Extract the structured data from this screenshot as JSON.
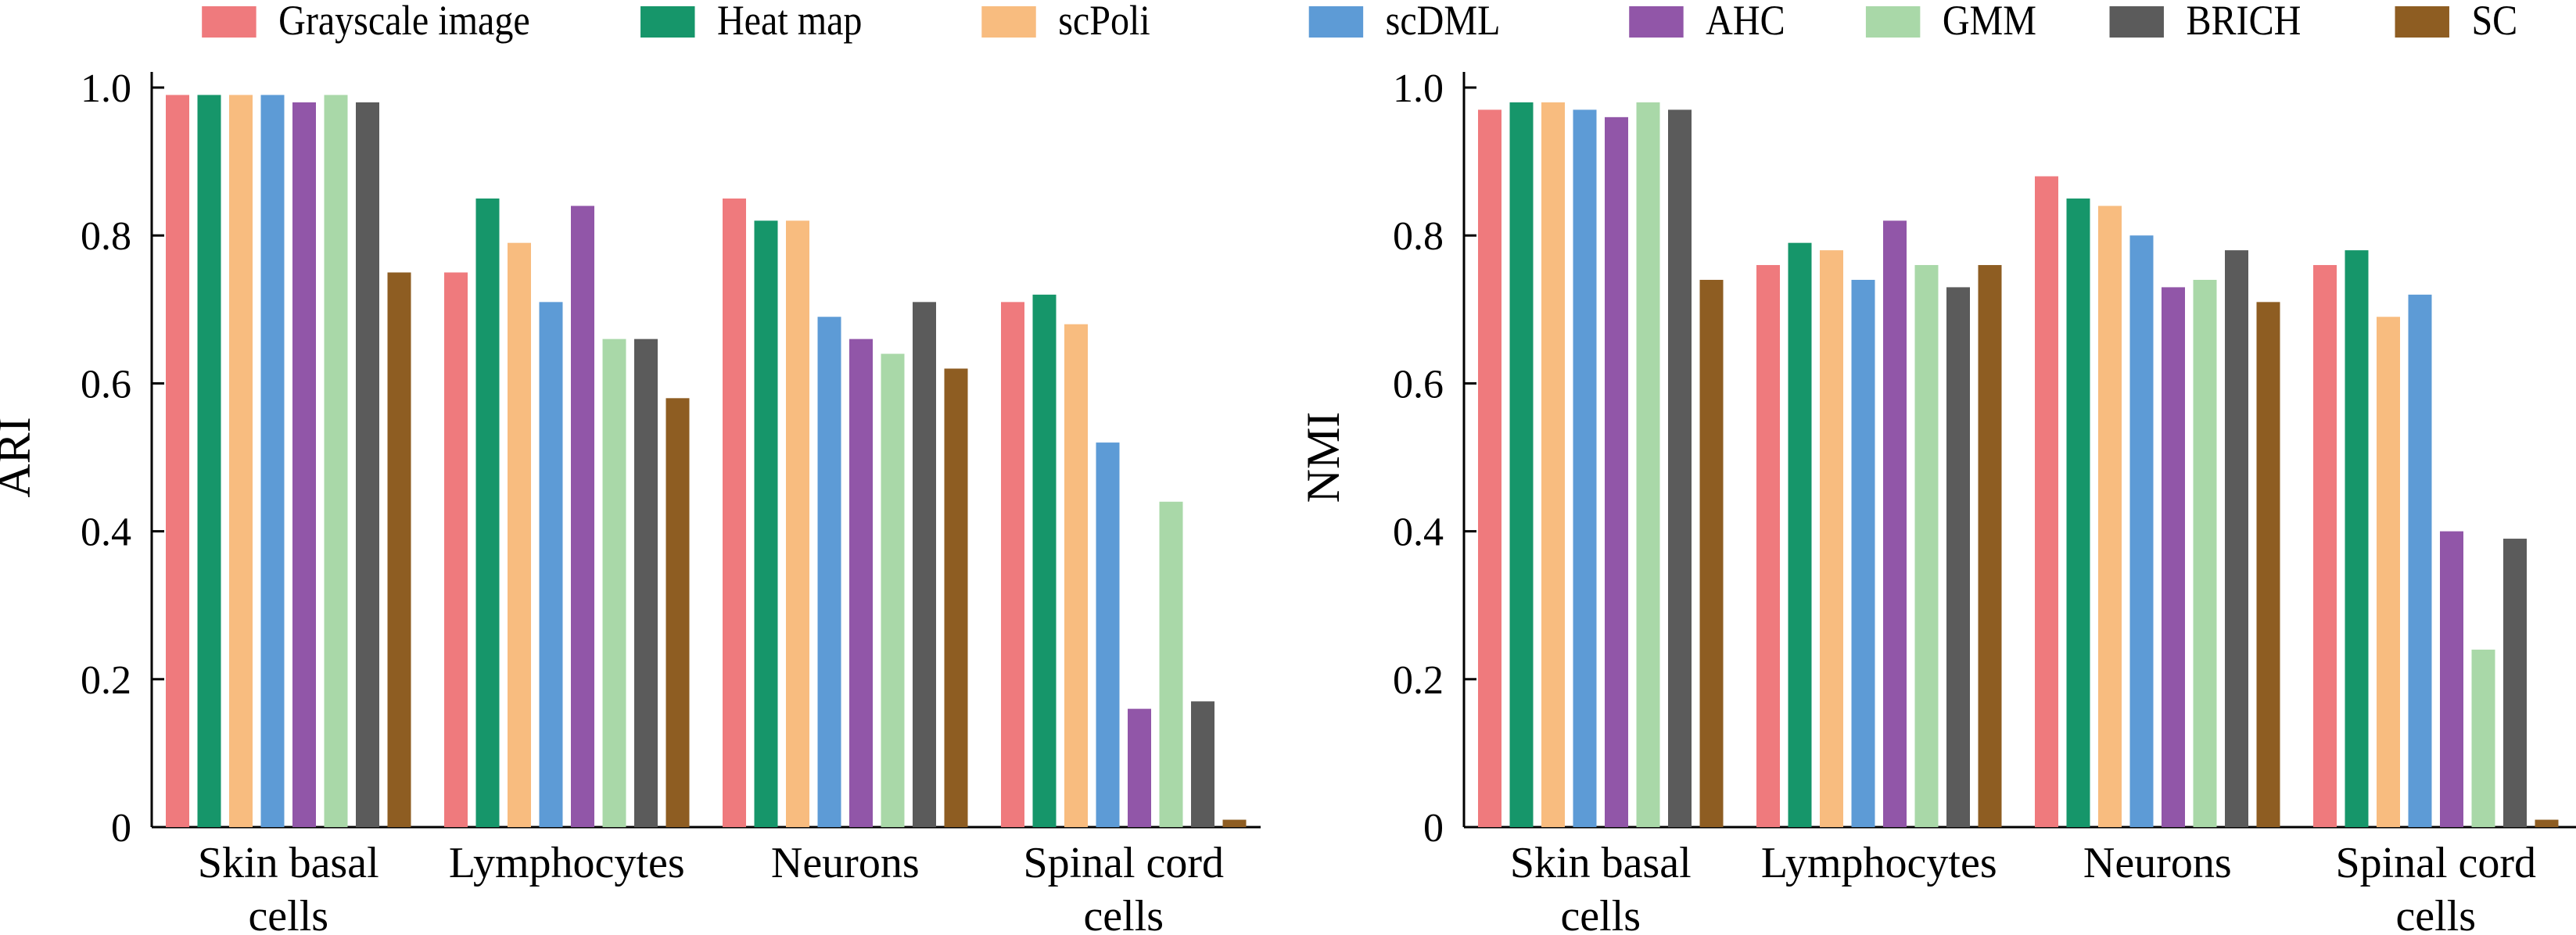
{
  "legend": {
    "series": [
      {
        "name": "Grayscale image",
        "color": "#ef7a7d"
      },
      {
        "name": "Heat map",
        "color": "#16966a"
      },
      {
        "name": "scPoli",
        "color": "#f8bc7f"
      },
      {
        "name": "scDML",
        "color": "#5d9bd6"
      },
      {
        "name": "AHC",
        "color": "#9156a8"
      },
      {
        "name": "GMM",
        "color": "#a9d8a8"
      },
      {
        "name": "BRICH",
        "color": "#5b5b5b"
      },
      {
        "name": "SC",
        "color": "#8e5d22"
      }
    ]
  },
  "chart_data": [
    {
      "type": "bar",
      "ylabel": "ARI",
      "xlabel": "",
      "ylim": [
        0,
        1.0
      ],
      "yticks": [
        "0",
        "0.2",
        "0.4",
        "0.6",
        "0.8",
        "1.0"
      ],
      "grid": false,
      "legend_position": "top",
      "categories": [
        [
          "Skin basal",
          "cells"
        ],
        [
          "Lymphocytes"
        ],
        [
          "Neurons"
        ],
        [
          "Spinal cord",
          "cells"
        ]
      ],
      "series": [
        {
          "name": "Grayscale image",
          "values": [
            0.99,
            0.75,
            0.85,
            0.71
          ]
        },
        {
          "name": "Heat map",
          "values": [
            0.99,
            0.85,
            0.82,
            0.72
          ]
        },
        {
          "name": "scPoli",
          "values": [
            0.99,
            0.79,
            0.82,
            0.68
          ]
        },
        {
          "name": "scDML",
          "values": [
            0.99,
            0.71,
            0.69,
            0.52
          ]
        },
        {
          "name": "AHC",
          "values": [
            0.98,
            0.84,
            0.66,
            0.16
          ]
        },
        {
          "name": "GMM",
          "values": [
            0.99,
            0.66,
            0.64,
            0.44
          ]
        },
        {
          "name": "BRICH",
          "values": [
            0.98,
            0.66,
            0.71,
            0.17
          ]
        },
        {
          "name": "SC",
          "values": [
            0.75,
            0.58,
            0.62,
            0.01
          ]
        }
      ]
    },
    {
      "type": "bar",
      "ylabel": "NMI",
      "xlabel": "",
      "ylim": [
        0,
        1.0
      ],
      "yticks": [
        "0",
        "0.2",
        "0.4",
        "0.6",
        "0.8",
        "1.0"
      ],
      "grid": false,
      "legend_position": "top",
      "categories": [
        [
          "Skin basal",
          "cells"
        ],
        [
          "Lymphocytes"
        ],
        [
          "Neurons"
        ],
        [
          "Spinal cord",
          "cells"
        ]
      ],
      "series": [
        {
          "name": "Grayscale image",
          "values": [
            0.97,
            0.76,
            0.88,
            0.76
          ]
        },
        {
          "name": "Heat map",
          "values": [
            0.98,
            0.79,
            0.85,
            0.78
          ]
        },
        {
          "name": "scPoli",
          "values": [
            0.98,
            0.78,
            0.84,
            0.69
          ]
        },
        {
          "name": "scDML",
          "values": [
            0.97,
            0.74,
            0.8,
            0.72
          ]
        },
        {
          "name": "AHC",
          "values": [
            0.96,
            0.82,
            0.73,
            0.4
          ]
        },
        {
          "name": "GMM",
          "values": [
            0.98,
            0.76,
            0.74,
            0.24
          ]
        },
        {
          "name": "BRICH",
          "values": [
            0.97,
            0.73,
            0.78,
            0.39
          ]
        },
        {
          "name": "SC",
          "values": [
            0.74,
            0.76,
            0.71,
            0.01
          ]
        }
      ]
    }
  ]
}
